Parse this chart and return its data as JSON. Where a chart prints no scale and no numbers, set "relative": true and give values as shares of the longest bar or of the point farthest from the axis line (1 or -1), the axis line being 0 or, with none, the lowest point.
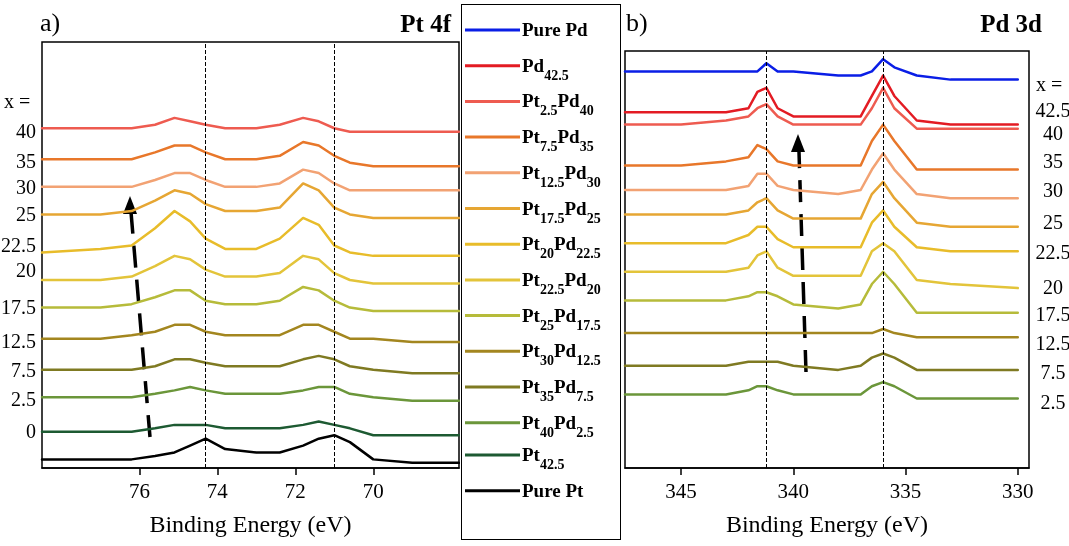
{
  "chart_data": [
    {
      "type": "line",
      "title": "Pt 4f",
      "xlabel": "Binding Energy (eV)",
      "relative": true,
      "legend": "right",
      "line_style": "solid",
      "xlim": [
        78.5,
        67.8
      ],
      "xticks": [
        76,
        74,
        72,
        70
      ],
      "x": [
        78.5,
        77,
        76.2,
        75.6,
        75.1,
        74.7,
        74.3,
        73.8,
        73,
        72.4,
        71.8,
        71.4,
        71.0,
        70.6,
        70,
        69,
        67.8
      ],
      "series": [
        {
          "color": "#ee5b50",
          "values": [
            0.97,
            0.97,
            0.97,
            0.98,
            1,
            0.99,
            0.98,
            0.97,
            0.97,
            0.98,
            1,
            0.99,
            0.97,
            0.96,
            0.96,
            0.96,
            0.96
          ]
        },
        {
          "color": "#e8772a",
          "values": [
            0.88,
            0.88,
            0.88,
            0.9,
            0.92,
            0.92,
            0.9,
            0.88,
            0.88,
            0.89,
            0.93,
            0.92,
            0.89,
            0.87,
            0.86,
            0.86,
            0.86
          ]
        },
        {
          "color": "#f2a273",
          "values": [
            0.8,
            0.8,
            0.8,
            0.82,
            0.84,
            0.84,
            0.82,
            0.8,
            0.8,
            0.81,
            0.85,
            0.84,
            0.81,
            0.79,
            0.79,
            0.79,
            0.79
          ]
        },
        {
          "color": "#e6a633",
          "values": [
            0.72,
            0.72,
            0.73,
            0.76,
            0.79,
            0.78,
            0.75,
            0.73,
            0.73,
            0.74,
            0.81,
            0.79,
            0.74,
            0.72,
            0.71,
            0.71,
            0.71
          ]
        },
        {
          "color": "#e8bc2a",
          "values": [
            0.61,
            0.62,
            0.63,
            0.68,
            0.73,
            0.7,
            0.65,
            0.62,
            0.62,
            0.65,
            0.71,
            0.69,
            0.63,
            0.61,
            0.6,
            0.6,
            0.6
          ]
        },
        {
          "color": "#e3c43a",
          "values": [
            0.53,
            0.53,
            0.54,
            0.57,
            0.6,
            0.59,
            0.56,
            0.54,
            0.54,
            0.55,
            0.6,
            0.59,
            0.55,
            0.53,
            0.52,
            0.52,
            0.52
          ]
        },
        {
          "color": "#b6bb3a",
          "values": [
            0.45,
            0.45,
            0.46,
            0.48,
            0.5,
            0.5,
            0.47,
            0.46,
            0.46,
            0.47,
            0.51,
            0.5,
            0.47,
            0.45,
            0.44,
            0.44,
            0.44
          ]
        },
        {
          "color": "#a3861f",
          "values": [
            0.36,
            0.36,
            0.37,
            0.38,
            0.4,
            0.4,
            0.38,
            0.37,
            0.37,
            0.37,
            0.4,
            0.4,
            0.38,
            0.36,
            0.36,
            0.35,
            0.35
          ]
        },
        {
          "color": "#7f7a22",
          "values": [
            0.27,
            0.27,
            0.27,
            0.28,
            0.3,
            0.3,
            0.29,
            0.28,
            0.28,
            0.28,
            0.3,
            0.31,
            0.3,
            0.28,
            0.27,
            0.26,
            0.26
          ]
        },
        {
          "color": "#6b963a",
          "values": [
            0.19,
            0.19,
            0.19,
            0.2,
            0.21,
            0.22,
            0.21,
            0.2,
            0.2,
            0.2,
            0.21,
            0.22,
            0.22,
            0.2,
            0.19,
            0.18,
            0.18
          ]
        },
        {
          "name": "Pt$_{42.5}$",
          "color": "#1d5a32",
          "values": [
            0.09,
            0.09,
            0.09,
            0.1,
            0.11,
            0.11,
            0.11,
            0.1,
            0.1,
            0.1,
            0.11,
            0.12,
            0.11,
            0.1,
            0.08,
            0.08,
            0.08
          ]
        },
        {
          "name": "Pure Pt",
          "color": "#000000",
          "values": [
            0.01,
            0.01,
            0.01,
            0.02,
            0.03,
            0.05,
            0.07,
            0.04,
            0.03,
            0.03,
            0.05,
            0.07,
            0.08,
            0.06,
            0.01,
            0,
            0
          ]
        }
      ],
      "ref_lines": [
        {
          "axis": "x",
          "value": 74.3,
          "line_style": "dashed"
        },
        {
          "axis": "x",
          "value": 71.0,
          "line_style": "dashed"
        }
      ],
      "annotations": [
        "a)",
        "x =",
        "40",
        "35",
        "30",
        "25",
        "22.5",
        "20",
        "17.5",
        "12.5",
        "7.5",
        "2.5",
        "0"
      ]
    },
    {
      "type": "line",
      "title": "Pd 3d",
      "xlabel": "Binding Energy (eV)",
      "relative": true,
      "legend": "left",
      "line_style": "solid",
      "xlim": [
        347.5,
        329.5
      ],
      "xticks": [
        345,
        340,
        335,
        330
      ],
      "x": [
        347.5,
        345,
        343,
        342,
        341.6,
        341.2,
        340.7,
        340,
        338,
        337,
        336.5,
        336,
        335.5,
        334.5,
        333,
        330
      ],
      "series": [
        {
          "name": "Pure Pd",
          "color": "#0a1ee6",
          "values": [
            0.97,
            0.97,
            0.97,
            0.97,
            0.97,
            0.99,
            0.97,
            0.97,
            0.96,
            0.96,
            0.97,
            1,
            0.98,
            0.96,
            0.95,
            0.95
          ]
        },
        {
          "name": "Pd$_{42.5}$",
          "color": "#e31b23",
          "values": [
            0.87,
            0.87,
            0.87,
            0.88,
            0.92,
            0.93,
            0.88,
            0.86,
            0.86,
            0.86,
            0.91,
            0.96,
            0.91,
            0.85,
            0.84,
            0.84
          ]
        },
        {
          "name": "Pt$_{2.5}$Pd$_{40}$",
          "color": "#ee5b50",
          "values": [
            0.84,
            0.84,
            0.85,
            0.86,
            0.88,
            0.89,
            0.86,
            0.84,
            0.84,
            0.84,
            0.88,
            0.93,
            0.88,
            0.83,
            0.83,
            0.83
          ]
        },
        {
          "name": "Pt$_{7.5}$Pd$_{35}$",
          "color": "#e8772a",
          "values": [
            0.74,
            0.74,
            0.75,
            0.76,
            0.79,
            0.78,
            0.75,
            0.74,
            0.74,
            0.74,
            0.8,
            0.84,
            0.8,
            0.73,
            0.73,
            0.73
          ]
        },
        {
          "name": "Pt$_{12.5}$Pd$_{30}$",
          "color": "#f2a273",
          "values": [
            0.68,
            0.68,
            0.68,
            0.69,
            0.72,
            0.72,
            0.69,
            0.68,
            0.67,
            0.68,
            0.73,
            0.77,
            0.73,
            0.67,
            0.66,
            0.66
          ]
        },
        {
          "name": "Pt$_{17.5}$Pd$_{25}$",
          "color": "#e6a633",
          "values": [
            0.62,
            0.62,
            0.62,
            0.63,
            0.65,
            0.66,
            0.63,
            0.61,
            0.61,
            0.61,
            0.67,
            0.7,
            0.66,
            0.6,
            0.59,
            0.59
          ]
        },
        {
          "name": "Pt$_{20}$Pd$_{22.5}$",
          "color": "#e8bc2a",
          "values": [
            0.55,
            0.55,
            0.55,
            0.57,
            0.59,
            0.59,
            0.56,
            0.54,
            0.54,
            0.54,
            0.6,
            0.63,
            0.59,
            0.54,
            0.53,
            0.53
          ]
        },
        {
          "name": "Pt$_{22.5}$Pd$_{20}$",
          "color": "#e3c43a",
          "values": [
            0.48,
            0.48,
            0.48,
            0.49,
            0.52,
            0.53,
            0.49,
            0.47,
            0.47,
            0.47,
            0.53,
            0.55,
            0.53,
            0.46,
            0.45,
            0.44
          ]
        },
        {
          "name": "Pt$_{25}$Pd$_{17.5}$",
          "color": "#b6bb3a",
          "values": [
            0.41,
            0.41,
            0.41,
            0.42,
            0.43,
            0.43,
            0.42,
            0.4,
            0.39,
            0.4,
            0.45,
            0.48,
            0.45,
            0.38,
            0.38,
            0.38
          ]
        },
        {
          "name": "Pt$_{30}$Pd$_{12.5}$",
          "color": "#a3861f",
          "values": [
            0.33,
            0.33,
            0.33,
            0.33,
            0.33,
            0.33,
            0.33,
            0.33,
            0.33,
            0.33,
            0.33,
            0.34,
            0.33,
            0.32,
            0.32,
            0.32
          ]
        },
        {
          "name": "Pt$_{35}$Pd$_{7.5}$",
          "color": "#7f7a22",
          "values": [
            0.25,
            0.25,
            0.25,
            0.26,
            0.26,
            0.26,
            0.26,
            0.25,
            0.24,
            0.25,
            0.27,
            0.28,
            0.27,
            0.24,
            0.24,
            0.24
          ]
        },
        {
          "name": "Pt$_{40}$Pd$_{2.5}$",
          "color": "#6b963a",
          "values": [
            0.18,
            0.18,
            0.18,
            0.19,
            0.2,
            0.2,
            0.19,
            0.18,
            0.18,
            0.18,
            0.2,
            0.21,
            0.2,
            0.17,
            0.17,
            0.17
          ]
        }
      ],
      "ref_lines": [
        {
          "axis": "x",
          "value": 341.2,
          "line_style": "dashed"
        },
        {
          "axis": "x",
          "value": 336.0,
          "line_style": "dashed"
        }
      ],
      "annotations": [
        "b)",
        "x =",
        "42.5",
        "40",
        "35",
        "30",
        "25",
        "22.5",
        "20",
        "17.5",
        "12.5",
        "7.5",
        "2.5"
      ]
    }
  ]
}
